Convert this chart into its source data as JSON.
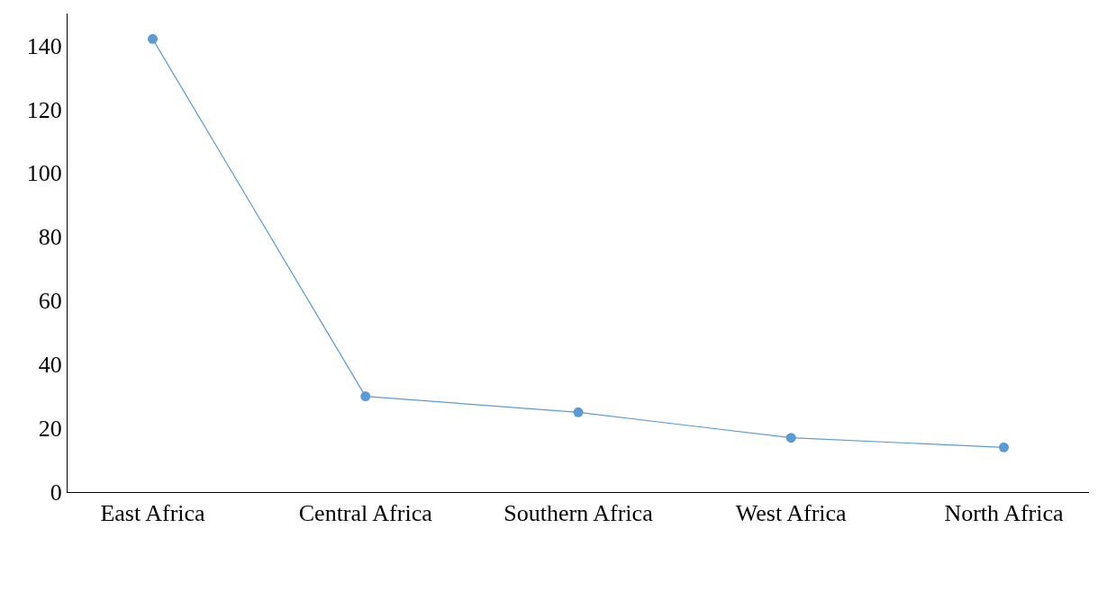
{
  "chart_data": {
    "type": "line",
    "categories": [
      "East Africa",
      "Central Africa",
      "Southern Africa",
      "West Africa",
      "North Africa"
    ],
    "series": [
      {
        "color": "#5b9bd5",
        "values": [
          142,
          30,
          25,
          17,
          14
        ]
      }
    ],
    "ylim": [
      0,
      150
    ],
    "yticks": [
      0,
      20,
      40,
      60,
      80,
      100,
      120,
      140
    ],
    "marker": "circle",
    "line_style": "solid"
  }
}
